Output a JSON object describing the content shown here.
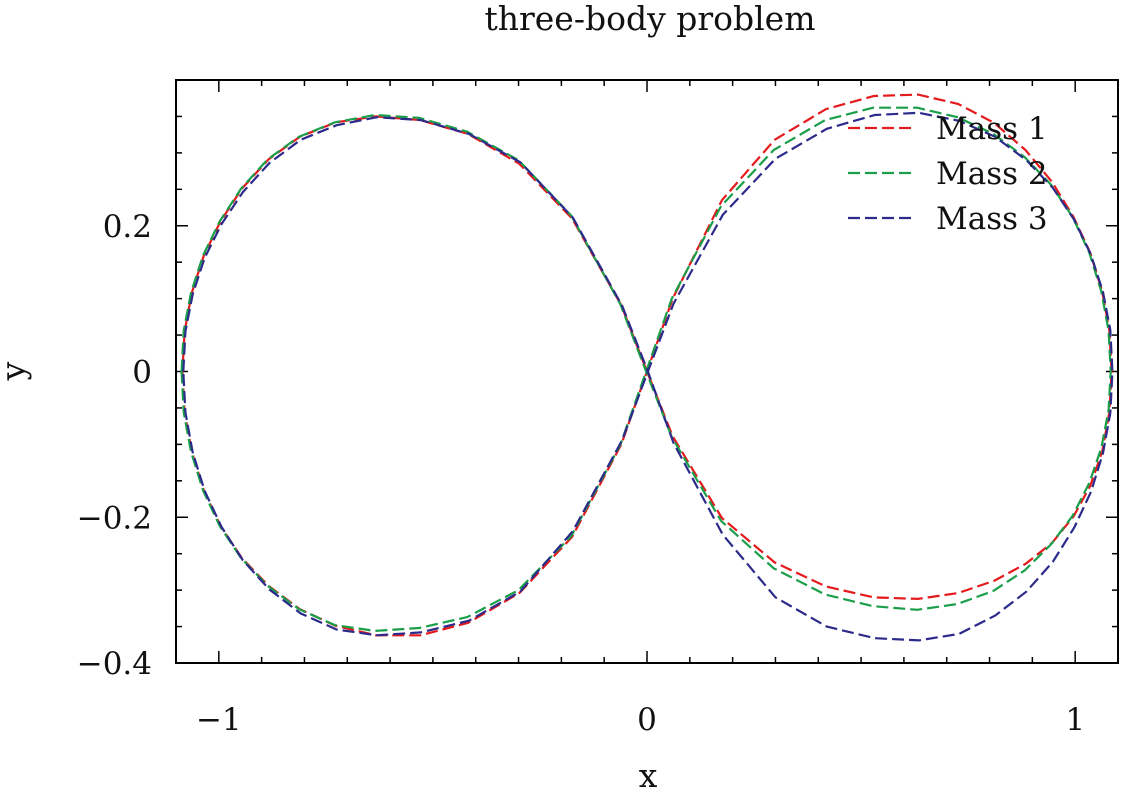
{
  "chart_data": {
    "type": "line",
    "title": "three-body problem",
    "xlabel": "x",
    "ylabel": "y",
    "xlim": [
      -1.1,
      1.1
    ],
    "ylim": [
      -0.4,
      0.4
    ],
    "xticks": [
      {
        "value": -1,
        "label": "−1"
      },
      {
        "value": 0,
        "label": "0"
      },
      {
        "value": 1,
        "label": "1"
      }
    ],
    "yticks": [
      {
        "value": -0.4,
        "label": "−0.4"
      },
      {
        "value": -0.2,
        "label": "−0.2"
      },
      {
        "value": 0,
        "label": "0"
      },
      {
        "value": 0.2,
        "label": "0.2"
      }
    ],
    "x_minor_step": 0.1,
    "y_minor_step": 0.05,
    "legend_position": "top-right",
    "grid": false,
    "series": [
      {
        "name": "Mass 1",
        "color": "#e41a1c",
        "x": [
          -1.085,
          -1.08,
          -1.063,
          -1.035,
          -0.996,
          -0.946,
          -0.884,
          -0.811,
          -0.727,
          -0.633,
          -0.53,
          -0.418,
          -0.298,
          -0.175,
          -0.06,
          0.0,
          0.06,
          0.175,
          0.298,
          0.418,
          0.53,
          0.633,
          0.727,
          0.811,
          0.884,
          0.946,
          0.996,
          1.035,
          1.063,
          1.08,
          1.085,
          1.08,
          1.063,
          1.035,
          0.996,
          0.946,
          0.884,
          0.811,
          0.727,
          0.633,
          0.53,
          0.418,
          0.298,
          0.175,
          0.06,
          0.0,
          -0.06,
          -0.175,
          -0.298,
          -0.418,
          -0.53,
          -0.633,
          -0.727,
          -0.811,
          -0.884,
          -0.946,
          -0.996,
          -1.035,
          -1.063,
          -1.08,
          -1.085
        ],
        "y": [
          0.0,
          -0.056,
          -0.11,
          -0.163,
          -0.212,
          -0.256,
          -0.294,
          -0.326,
          -0.349,
          -0.362,
          -0.362,
          -0.345,
          -0.304,
          -0.227,
          -0.1,
          0.0,
          0.1,
          0.235,
          0.318,
          0.36,
          0.378,
          0.38,
          0.367,
          0.341,
          0.304,
          0.26,
          0.212,
          0.163,
          0.11,
          0.056,
          0.0,
          -0.056,
          -0.11,
          -0.157,
          -0.199,
          -0.235,
          -0.264,
          -0.287,
          -0.304,
          -0.312,
          -0.31,
          -0.295,
          -0.262,
          -0.201,
          -0.089,
          0.0,
          0.091,
          0.21,
          0.285,
          0.326,
          0.345,
          0.35,
          0.342,
          0.322,
          0.291,
          0.251,
          0.206,
          0.159,
          0.108,
          0.055,
          0.0
        ]
      },
      {
        "name": "Mass 2",
        "color": "#1a9e4a",
        "x": [
          -1.087,
          -1.082,
          -1.065,
          -1.037,
          -0.998,
          -0.948,
          -0.886,
          -0.813,
          -0.729,
          -0.635,
          -0.532,
          -0.42,
          -0.3,
          -0.177,
          -0.062,
          -0.002,
          0.058,
          0.173,
          0.296,
          0.416,
          0.528,
          0.631,
          0.725,
          0.809,
          0.882,
          0.944,
          0.994,
          1.033,
          1.061,
          1.078,
          1.083,
          1.078,
          1.061,
          1.033,
          0.994,
          0.944,
          0.882,
          0.809,
          0.725,
          0.631,
          0.528,
          0.416,
          0.296,
          0.173,
          0.058,
          -0.002,
          -0.062,
          -0.177,
          -0.3,
          -0.42,
          -0.532,
          -0.635,
          -0.729,
          -0.813,
          -0.886,
          -0.948,
          -0.998,
          -1.037,
          -1.065,
          -1.082,
          -1.087
        ],
        "y": [
          0.0,
          0.056,
          0.108,
          0.159,
          0.206,
          0.251,
          0.291,
          0.322,
          0.342,
          0.352,
          0.348,
          0.329,
          0.29,
          0.214,
          0.092,
          0.0,
          -0.09,
          -0.205,
          -0.27,
          -0.306,
          -0.322,
          -0.327,
          -0.319,
          -0.301,
          -0.273,
          -0.237,
          -0.198,
          -0.153,
          -0.105,
          -0.053,
          0.0,
          0.056,
          0.11,
          0.163,
          0.212,
          0.256,
          0.294,
          0.326,
          0.349,
          0.362,
          0.362,
          0.345,
          0.304,
          0.227,
          0.1,
          0.0,
          -0.1,
          -0.226,
          -0.3,
          -0.337,
          -0.352,
          -0.356,
          -0.348,
          -0.326,
          -0.294,
          -0.256,
          -0.212,
          -0.163,
          -0.11,
          -0.056,
          0.0
        ]
      },
      {
        "name": "Mass 3",
        "color": "#2c2a8a",
        "x": [
          -1.083,
          -1.078,
          -1.061,
          -1.033,
          -0.994,
          -0.944,
          -0.882,
          -0.809,
          -0.725,
          -0.631,
          -0.528,
          -0.416,
          -0.296,
          -0.173,
          -0.058,
          0.002,
          0.062,
          0.177,
          0.3,
          0.42,
          0.532,
          0.635,
          0.729,
          0.813,
          0.886,
          0.948,
          0.998,
          1.037,
          1.065,
          1.082,
          1.087,
          1.082,
          1.065,
          1.037,
          0.998,
          0.948,
          0.886,
          0.813,
          0.729,
          0.635,
          0.532,
          0.42,
          0.3,
          0.177,
          0.062,
          0.002,
          -0.058,
          -0.173,
          -0.296,
          -0.416,
          -0.528,
          -0.631,
          -0.725,
          -0.809,
          -0.882,
          -0.944,
          -0.994,
          -1.033,
          -1.061,
          -1.078,
          -1.083
        ],
        "y": [
          0.0,
          0.055,
          0.106,
          0.156,
          0.202,
          0.246,
          0.286,
          0.318,
          0.338,
          0.349,
          0.345,
          0.326,
          0.287,
          0.211,
          0.09,
          0.0,
          -0.098,
          -0.224,
          -0.31,
          -0.35,
          -0.366,
          -0.369,
          -0.36,
          -0.335,
          -0.302,
          -0.261,
          -0.214,
          -0.165,
          -0.112,
          -0.057,
          0.0,
          0.057,
          0.109,
          0.16,
          0.208,
          0.252,
          0.29,
          0.322,
          0.344,
          0.355,
          0.352,
          0.333,
          0.292,
          0.215,
          0.093,
          0.0,
          -0.094,
          -0.219,
          -0.302,
          -0.342,
          -0.358,
          -0.362,
          -0.354,
          -0.332,
          -0.299,
          -0.259,
          -0.213,
          -0.164,
          -0.111,
          -0.056,
          0.0
        ]
      }
    ]
  }
}
